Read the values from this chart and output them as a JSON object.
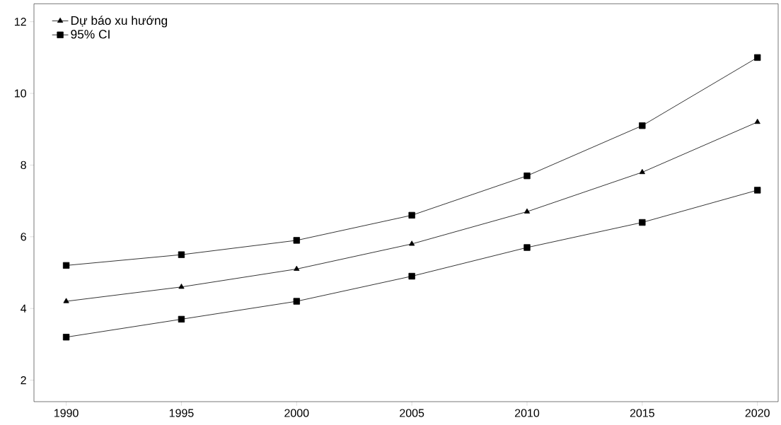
{
  "chart_data": {
    "type": "line",
    "x": [
      1990,
      1995,
      2000,
      2005,
      2010,
      2015,
      2020
    ],
    "series": [
      {
        "name": "Dự báo xu hướng",
        "color": "#000000",
        "marker": "triangle",
        "values": [
          4.2,
          4.6,
          5.1,
          5.8,
          6.7,
          7.8,
          9.2
        ]
      },
      {
        "name": "95% CI",
        "color": "#000000",
        "marker": "square",
        "values": [
          5.2,
          5.5,
          5.9,
          6.6,
          7.7,
          9.1,
          11.0
        ]
      },
      {
        "color": "#000000",
        "marker": "square",
        "values": [
          3.2,
          3.7,
          4.2,
          4.9,
          5.7,
          6.4,
          7.3
        ]
      }
    ],
    "xlim": [
      1988.6,
      2020.9
    ],
    "ylim": [
      1.4,
      12.5
    ],
    "xticks": [
      1990,
      1995,
      2000,
      2005,
      2010,
      2015,
      2020
    ],
    "yticks": [
      2,
      4,
      6,
      8,
      10,
      12
    ],
    "grid": false,
    "legend": "top left",
    "line_style": "solid"
  }
}
